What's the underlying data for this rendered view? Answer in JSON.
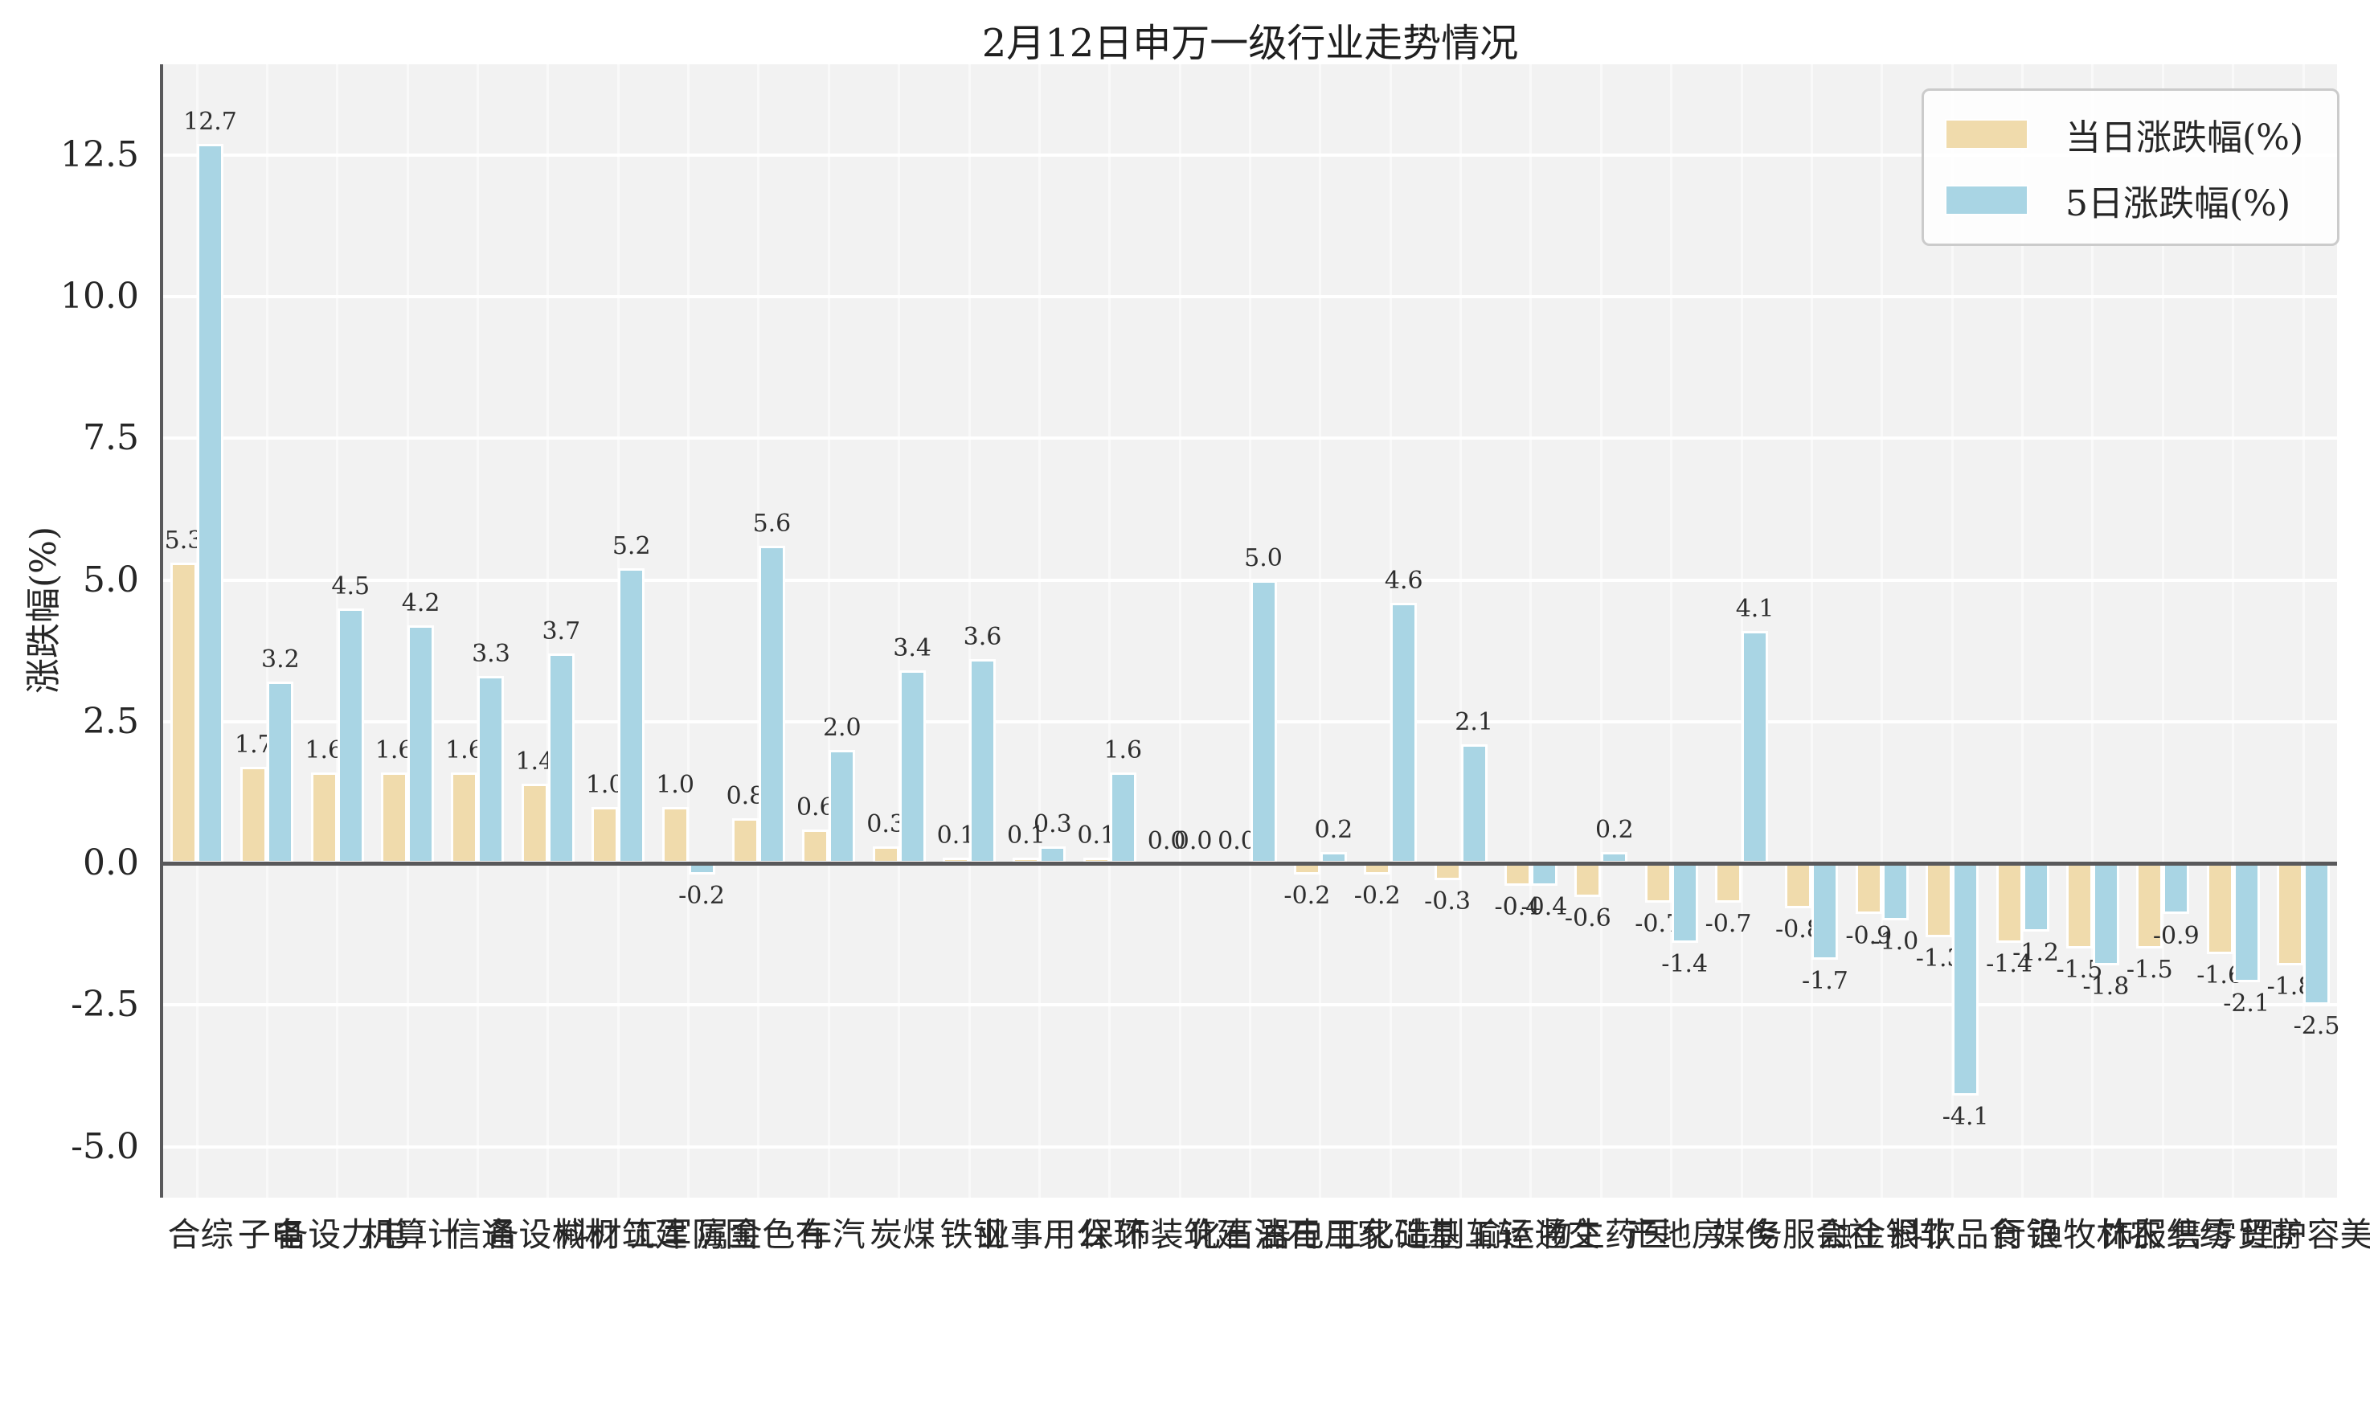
{
  "chart_data": {
    "type": "bar",
    "title": "2月12日申万一级行业走势情况",
    "ylabel": "涨跌幅(%)",
    "ylim": [
      -5.9,
      14.1
    ],
    "yticks": [
      12.5,
      10.0,
      7.5,
      5.0,
      2.5,
      0.0,
      -2.5,
      -5.0
    ],
    "grid": true,
    "legend_position": "upper right",
    "value_label_decimals": 1,
    "categories": [
      "综合",
      "电子",
      "电力设备",
      "计算机",
      "通信",
      "机械设备",
      "建筑材料",
      "国防军工",
      "有色金属",
      "汽车",
      "煤炭",
      "钢铁",
      "公用事业",
      "环保",
      "建筑装饰",
      "石油石化",
      "家用电器",
      "基础化工",
      "轻工制造",
      "交通运输",
      "医药生物",
      "房地产",
      "传媒",
      "社会服务",
      "非银金融",
      "食品饮料",
      "银行",
      "农林牧渔",
      "纺织服饰",
      "商贸零售",
      "美容护理"
    ],
    "series": [
      {
        "name": "当日涨跌幅(%)",
        "color": "#f0dbac",
        "values": [
          5.3,
          1.7,
          1.6,
          1.6,
          1.6,
          1.4,
          1.0,
          1.0,
          0.8,
          0.6,
          0.3,
          0.1,
          0.1,
          0.1,
          0.0,
          0.0,
          -0.2,
          -0.2,
          -0.3,
          -0.4,
          -0.6,
          -0.7,
          -0.7,
          -0.8,
          -0.9,
          -1.3,
          -1.4,
          -1.5,
          -1.5,
          -1.6,
          -1.8
        ]
      },
      {
        "name": "5日涨跌幅(%)",
        "color": "#a9d5e4",
        "values": [
          12.7,
          3.2,
          4.5,
          4.2,
          3.3,
          3.7,
          5.2,
          -0.2,
          5.6,
          2.0,
          3.4,
          3.6,
          0.3,
          1.6,
          0.0,
          5.0,
          0.2,
          4.6,
          2.1,
          -0.4,
          0.2,
          -1.4,
          4.1,
          -1.7,
          -1.0,
          -4.1,
          -1.2,
          -1.8,
          -0.9,
          -2.1,
          -2.5
        ]
      }
    ],
    "colors": {
      "plot_background": "#f2f2f2",
      "figure_background": "#ffffff",
      "axis_line": "#59595b",
      "grid_line": "#ffffff",
      "text": "#262626"
    }
  }
}
